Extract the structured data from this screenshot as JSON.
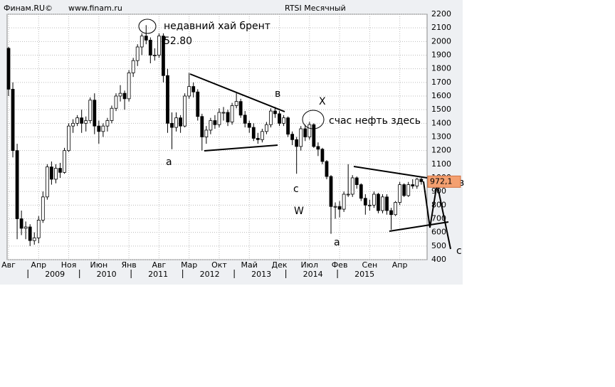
{
  "chart_data": {
    "type": "candlestick",
    "header": [
      "Финам.RU©",
      "www.finam.ru",
      "RTSI Месячный"
    ],
    "candles": [
      [
        1950,
        1960,
        1600,
        1650
      ],
      [
        1650,
        1700,
        1150,
        1200
      ],
      [
        1200,
        1250,
        550,
        700
      ],
      [
        700,
        760,
        580,
        630
      ],
      [
        630,
        680,
        550,
        640
      ],
      [
        640,
        660,
        500,
        540
      ],
      [
        540,
        600,
        510,
        560
      ],
      [
        560,
        720,
        520,
        690
      ],
      [
        690,
        900,
        670,
        860
      ],
      [
        860,
        1100,
        840,
        1080
      ],
      [
        1080,
        1120,
        950,
        990
      ],
      [
        990,
        1100,
        960,
        1070
      ],
      [
        1070,
        1110,
        1000,
        1040
      ],
      [
        1040,
        1220,
        1030,
        1200
      ],
      [
        1200,
        1400,
        1190,
        1380
      ],
      [
        1380,
        1430,
        1330,
        1400
      ],
      [
        1400,
        1460,
        1380,
        1440
      ],
      [
        1440,
        1500,
        1330,
        1400
      ],
      [
        1400,
        1450,
        1340,
        1420
      ],
      [
        1420,
        1590,
        1400,
        1570
      ],
      [
        1570,
        1620,
        1320,
        1380
      ],
      [
        1380,
        1420,
        1250,
        1340
      ],
      [
        1340,
        1400,
        1300,
        1380
      ],
      [
        1380,
        1440,
        1340,
        1420
      ],
      [
        1420,
        1530,
        1400,
        1510
      ],
      [
        1510,
        1620,
        1490,
        1600
      ],
      [
        1600,
        1680,
        1560,
        1620
      ],
      [
        1620,
        1640,
        1500,
        1580
      ],
      [
        1580,
        1790,
        1560,
        1770
      ],
      [
        1770,
        1880,
        1740,
        1860
      ],
      [
        1860,
        1980,
        1820,
        1960
      ],
      [
        1960,
        2060,
        1900,
        2040
      ],
      [
        2040,
        2120,
        1980,
        2010
      ],
      [
        2010,
        2030,
        1840,
        1900
      ],
      [
        1900,
        1950,
        1860,
        1900
      ],
      [
        1900,
        2060,
        1880,
        2040
      ],
      [
        2040,
        2060,
        1700,
        1750
      ],
      [
        1750,
        1800,
        1330,
        1400
      ],
      [
        1400,
        1480,
        1210,
        1370
      ],
      [
        1370,
        1480,
        1340,
        1440
      ],
      [
        1440,
        1460,
        1330,
        1380
      ],
      [
        1380,
        1620,
        1370,
        1600
      ],
      [
        1600,
        1770,
        1580,
        1670
      ],
      [
        1670,
        1700,
        1590,
        1630
      ],
      [
        1630,
        1650,
        1420,
        1450
      ],
      [
        1450,
        1470,
        1200,
        1300
      ],
      [
        1300,
        1380,
        1250,
        1350
      ],
      [
        1350,
        1440,
        1320,
        1420
      ],
      [
        1420,
        1460,
        1360,
        1390
      ],
      [
        1390,
        1510,
        1370,
        1480
      ],
      [
        1480,
        1520,
        1420,
        1480
      ],
      [
        1480,
        1500,
        1380,
        1410
      ],
      [
        1410,
        1550,
        1390,
        1530
      ],
      [
        1530,
        1620,
        1510,
        1560
      ],
      [
        1560,
        1580,
        1440,
        1460
      ],
      [
        1460,
        1490,
        1370,
        1400
      ],
      [
        1400,
        1420,
        1330,
        1370
      ],
      [
        1370,
        1400,
        1270,
        1290
      ],
      [
        1290,
        1330,
        1250,
        1280
      ],
      [
        1280,
        1360,
        1260,
        1340
      ],
      [
        1340,
        1410,
        1320,
        1390
      ],
      [
        1390,
        1510,
        1370,
        1490
      ],
      [
        1490,
        1520,
        1440,
        1470
      ],
      [
        1470,
        1490,
        1380,
        1400
      ],
      [
        1400,
        1460,
        1380,
        1440
      ],
      [
        1440,
        1450,
        1300,
        1320
      ],
      [
        1320,
        1340,
        1240,
        1280
      ],
      [
        1280,
        1300,
        1030,
        1230
      ],
      [
        1230,
        1380,
        1200,
        1360
      ],
      [
        1360,
        1390,
        1270,
        1300
      ],
      [
        1300,
        1410,
        1280,
        1390
      ],
      [
        1390,
        1400,
        1220,
        1230
      ],
      [
        1230,
        1260,
        1160,
        1210
      ],
      [
        1210,
        1220,
        1100,
        1120
      ],
      [
        1120,
        1130,
        990,
        1010
      ],
      [
        1010,
        1020,
        590,
        790
      ],
      [
        790,
        820,
        700,
        790
      ],
      [
        790,
        830,
        710,
        770
      ],
      [
        770,
        900,
        750,
        880
      ],
      [
        880,
        1100,
        860,
        880
      ],
      [
        880,
        1020,
        860,
        1000
      ],
      [
        1000,
        1010,
        920,
        950
      ],
      [
        950,
        960,
        830,
        850
      ],
      [
        850,
        880,
        730,
        800
      ],
      [
        800,
        840,
        760,
        800
      ],
      [
        800,
        900,
        780,
        880
      ],
      [
        880,
        890,
        740,
        760
      ],
      [
        760,
        880,
        740,
        860
      ],
      [
        860,
        880,
        730,
        760
      ],
      [
        760,
        780,
        620,
        730
      ],
      [
        730,
        830,
        720,
        820
      ],
      [
        820,
        970,
        800,
        950
      ],
      [
        950,
        960,
        860,
        870
      ],
      [
        870,
        970,
        860,
        950
      ],
      [
        950,
        990,
        920,
        940
      ],
      [
        940,
        1000,
        920,
        990
      ],
      [
        990,
        1000,
        950,
        972.1
      ]
    ],
    "last_price": {
      "value": 972.1,
      "label": "972,1"
    },
    "ylim": [
      400,
      2200
    ],
    "yticks": [
      400,
      500,
      600,
      700,
      800,
      900,
      1000,
      1100,
      1200,
      1300,
      1400,
      1500,
      1600,
      1700,
      1800,
      1900,
      2000,
      2100,
      2200
    ],
    "xticks": [
      {
        "value": 0,
        "label": "Авг"
      },
      {
        "value": 7,
        "label": "Апр"
      },
      {
        "value": 14,
        "label": "Ноя"
      },
      {
        "value": 21,
        "label": "Июн"
      },
      {
        "value": 28,
        "label": "Янв"
      },
      {
        "value": 35,
        "label": "Авг"
      },
      {
        "value": 42,
        "label": "Мар"
      },
      {
        "value": 49,
        "label": "Окт"
      },
      {
        "value": 56,
        "label": "Май"
      },
      {
        "value": 63,
        "label": "Дек"
      },
      {
        "value": 70,
        "label": "Июл"
      },
      {
        "value": 77,
        "label": "Фев"
      },
      {
        "value": 84,
        "label": "Сен"
      },
      {
        "value": 91,
        "label": "Апр"
      }
    ],
    "years": [
      {
        "value": 5,
        "label": "2009"
      },
      {
        "value": 17,
        "label": "2010"
      },
      {
        "value": 29,
        "label": "2011"
      },
      {
        "value": 41,
        "label": "2012"
      },
      {
        "value": 53,
        "label": "2013"
      },
      {
        "value": 65,
        "label": "2014"
      },
      {
        "value": 77,
        "label": "2015"
      }
    ],
    "annotations": [
      "недавний хай брент",
      "52.80",
      "в",
      "X",
      "счас нефть здесь",
      "а",
      "с",
      "W",
      "а",
      "с",
      "в"
    ],
    "grid": true
  }
}
